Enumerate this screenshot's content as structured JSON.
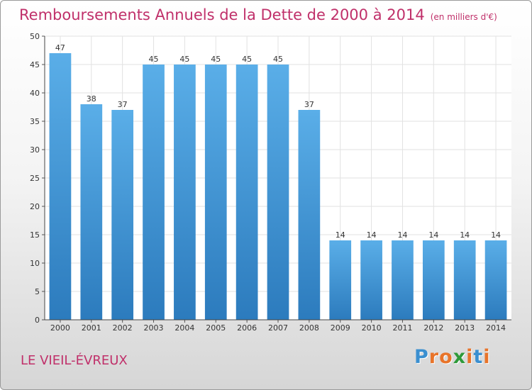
{
  "chart_data": {
    "type": "bar",
    "title": "Remboursements Annuels de la Dette de 2000 à 2014",
    "unit": "(en milliers d'€)",
    "categories": [
      "2000",
      "2001",
      "2002",
      "2003",
      "2004",
      "2005",
      "2006",
      "2007",
      "2008",
      "2009",
      "2010",
      "2011",
      "2012",
      "2013",
      "2014"
    ],
    "values": [
      47,
      38,
      37,
      45,
      45,
      45,
      45,
      45,
      37,
      14,
      14,
      14,
      14,
      14,
      14
    ],
    "ylim": [
      0,
      50
    ],
    "yticks": [
      0,
      5,
      10,
      15,
      20,
      25,
      30,
      35,
      40,
      45,
      50
    ],
    "grid": true,
    "colors": {
      "bar_top": "#5aaee8",
      "bar_bottom": "#2c7bbd",
      "title": "#c0306a"
    }
  },
  "footer": {
    "city": "LE VIEIL-ÉVREUX",
    "logo_letters": [
      "P",
      "r",
      "o",
      "x",
      "i",
      "t",
      "i"
    ],
    "logo_colors": [
      "#3a8fd0",
      "#e8742a",
      "#e8742a",
      "#2e9a3a",
      "#e8742a",
      "#3a8fd0",
      "#e8742a"
    ]
  }
}
